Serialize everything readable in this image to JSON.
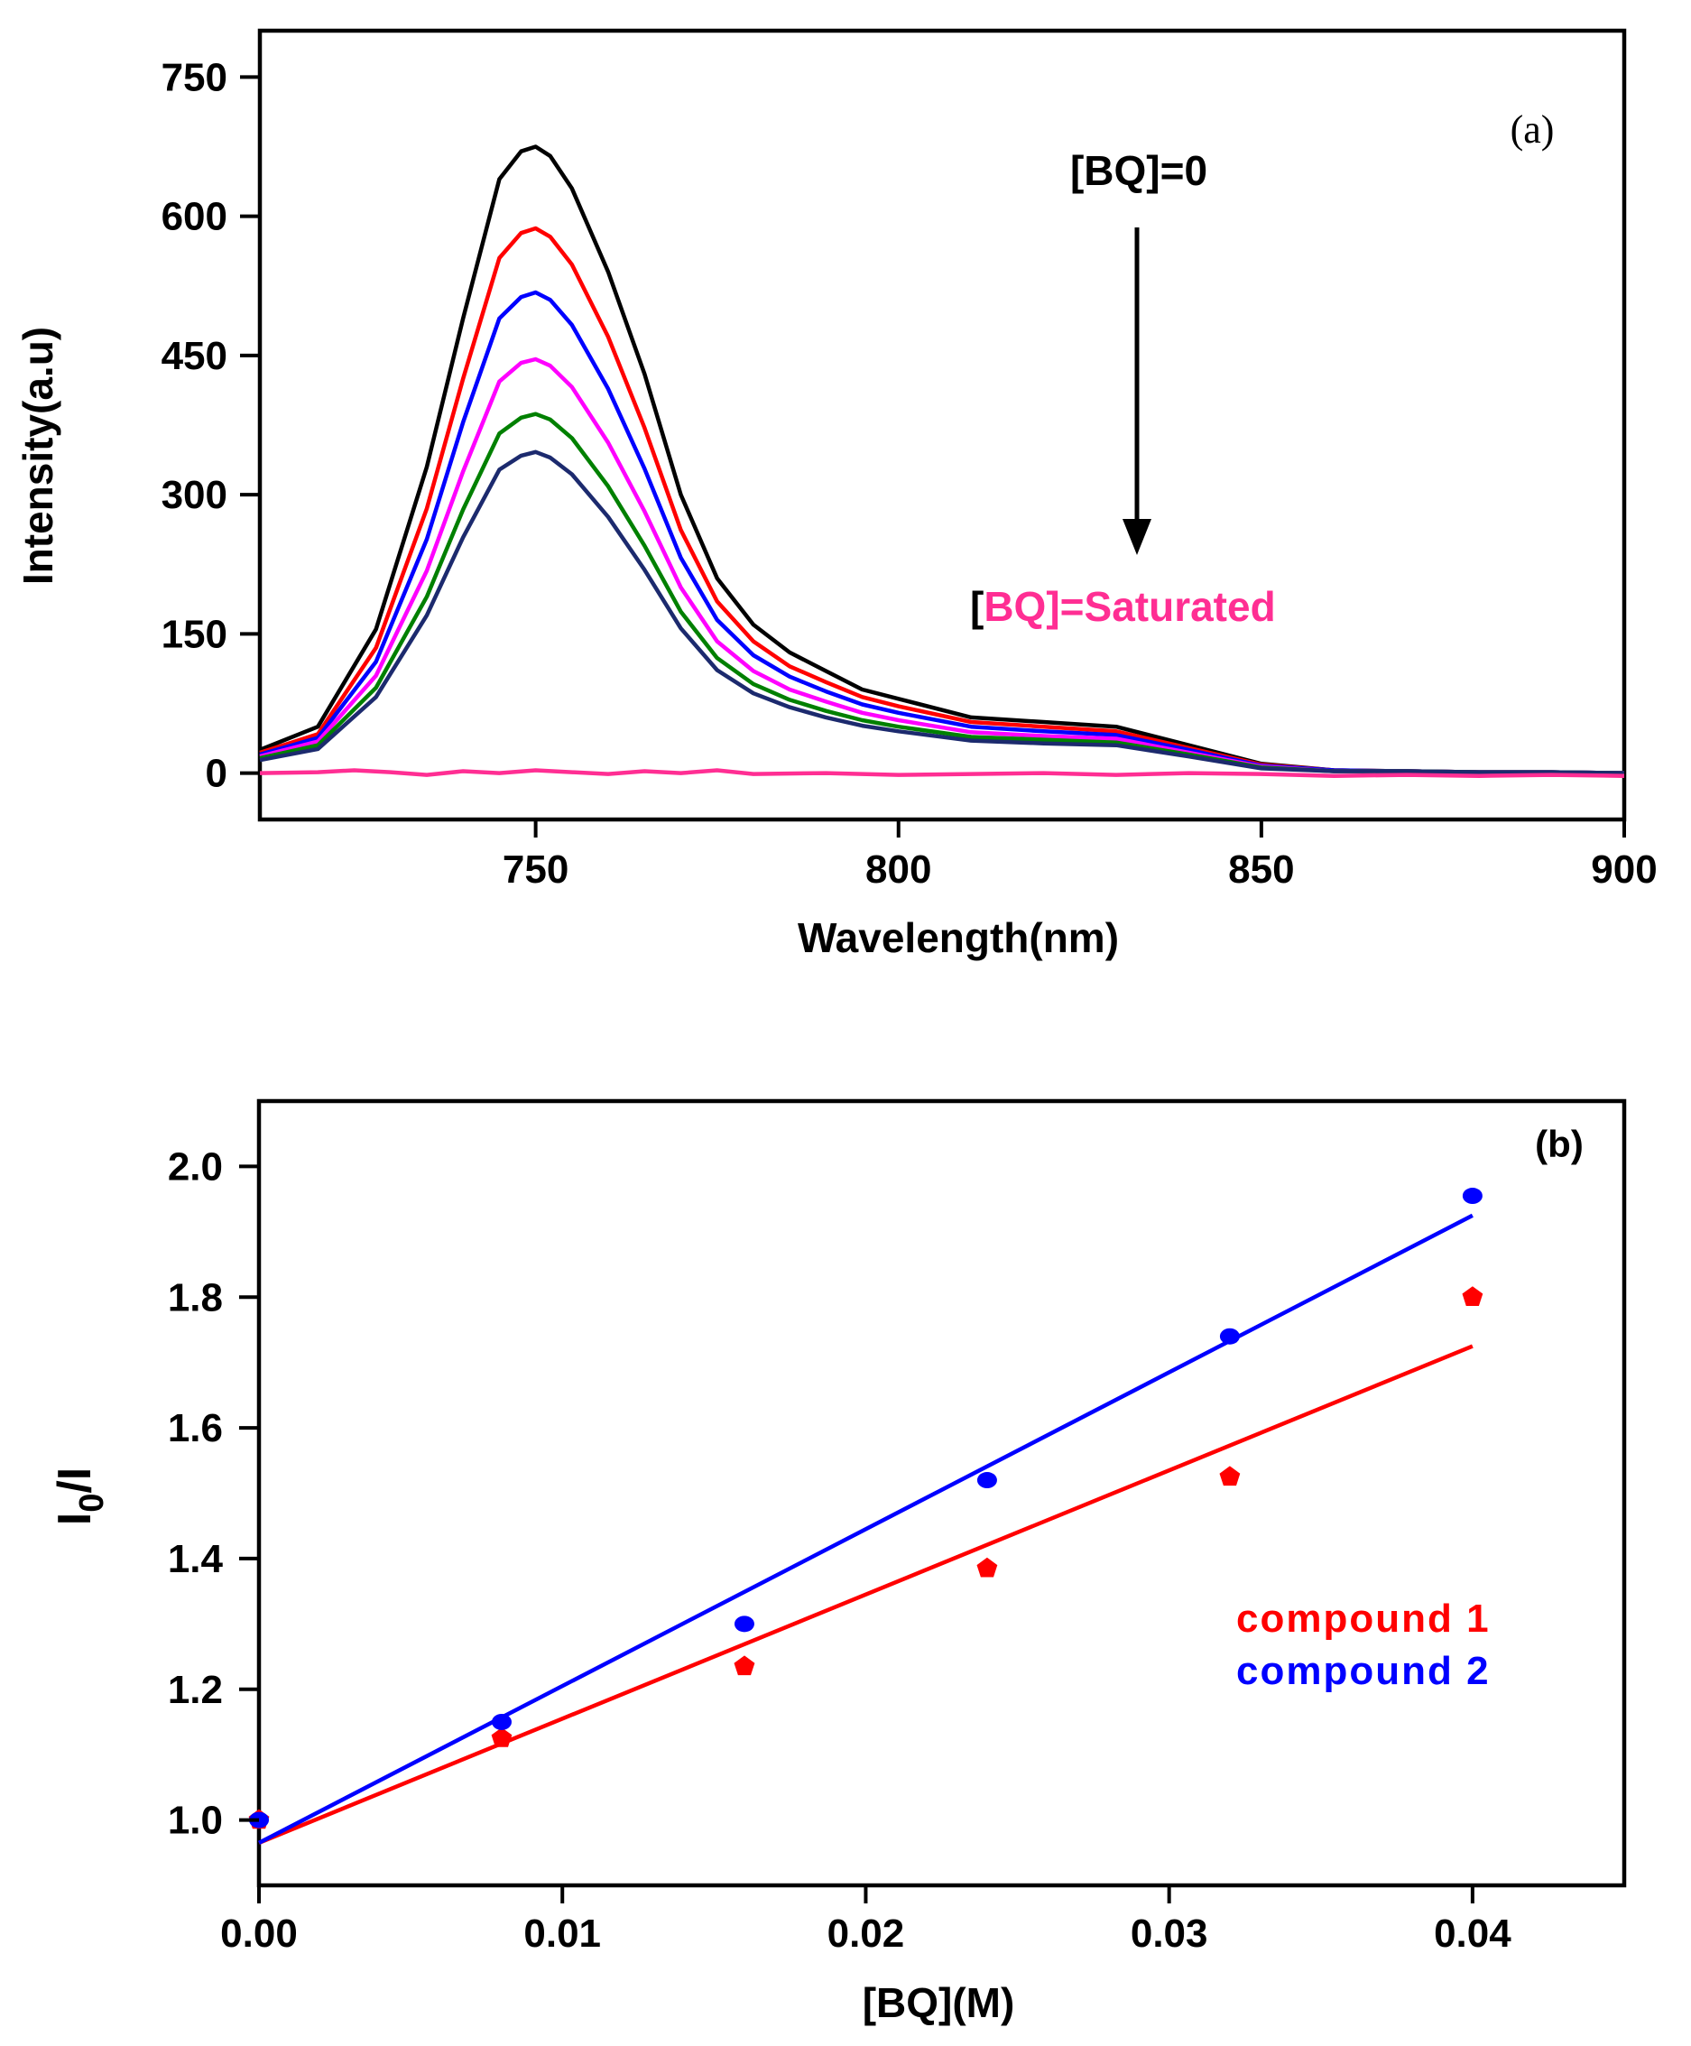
{
  "chart_data": [
    {
      "type": "line",
      "panel_label": "(a)",
      "xlabel": "Wavelength(nm)",
      "ylabel": "Intensity(a.u)",
      "xlim": [
        712,
        900
      ],
      "ylim": [
        -50,
        800
      ],
      "xticks": [
        750,
        800,
        850,
        900
      ],
      "yticks": [
        0,
        150,
        300,
        450,
        600,
        750
      ],
      "grid": false,
      "annotations": {
        "top": "[BQ]=0",
        "bottom_bracket_open": "[",
        "bottom_species": "BQ",
        "bottom_rest": "]=Saturated",
        "arrow": "down"
      },
      "series": [
        {
          "color": "#000000",
          "x": [
            712,
            720,
            728,
            735,
            740,
            745,
            748,
            750,
            752,
            755,
            760,
            765,
            770,
            775,
            780,
            785,
            790,
            795,
            800,
            810,
            820,
            830,
            840,
            850,
            860,
            870,
            880,
            890,
            900
          ],
          "y": [
            25,
            50,
            155,
            330,
            490,
            640,
            670,
            675,
            665,
            630,
            540,
            430,
            300,
            210,
            160,
            130,
            110,
            90,
            80,
            60,
            55,
            50,
            30,
            10,
            3,
            2,
            1,
            1,
            0
          ]
        },
        {
          "color": "#ff0000",
          "x": [
            712,
            720,
            728,
            735,
            740,
            745,
            748,
            750,
            752,
            755,
            760,
            765,
            770,
            775,
            780,
            785,
            790,
            795,
            800,
            810,
            820,
            830,
            840,
            850,
            860,
            870,
            880,
            890,
            900
          ],
          "y": [
            22,
            42,
            135,
            285,
            425,
            555,
            582,
            587,
            578,
            548,
            470,
            372,
            262,
            185,
            142,
            115,
            98,
            82,
            72,
            55,
            50,
            45,
            27,
            9,
            3,
            2,
            1,
            1,
            0
          ]
        },
        {
          "color": "#0000ff",
          "x": [
            712,
            720,
            728,
            735,
            740,
            745,
            748,
            750,
            752,
            755,
            760,
            765,
            770,
            775,
            780,
            785,
            790,
            795,
            800,
            810,
            820,
            830,
            840,
            850,
            860,
            870,
            880,
            890,
            900
          ],
          "y": [
            20,
            38,
            120,
            252,
            378,
            490,
            513,
            518,
            510,
            483,
            414,
            328,
            232,
            165,
            127,
            104,
            88,
            74,
            65,
            50,
            45,
            41,
            25,
            8,
            3,
            2,
            1,
            1,
            0
          ]
        },
        {
          "color": "#ff00ff",
          "x": [
            712,
            720,
            728,
            735,
            740,
            745,
            748,
            750,
            752,
            755,
            760,
            765,
            770,
            775,
            780,
            785,
            790,
            795,
            800,
            810,
            820,
            830,
            840,
            850,
            860,
            870,
            880,
            890,
            900
          ],
          "y": [
            18,
            34,
            105,
            218,
            325,
            422,
            442,
            446,
            439,
            416,
            356,
            282,
            200,
            142,
            110,
            90,
            77,
            65,
            57,
            44,
            40,
            37,
            22,
            7,
            2,
            2,
            1,
            1,
            0
          ]
        },
        {
          "color": "#008000",
          "x": [
            712,
            720,
            728,
            735,
            740,
            745,
            748,
            750,
            752,
            755,
            760,
            765,
            770,
            775,
            780,
            785,
            790,
            795,
            800,
            810,
            820,
            830,
            840,
            850,
            860,
            870,
            880,
            890,
            900
          ],
          "y": [
            16,
            30,
            92,
            190,
            284,
            366,
            383,
            387,
            381,
            361,
            309,
            245,
            174,
            124,
            96,
            79,
            67,
            57,
            50,
            39,
            36,
            33,
            20,
            6,
            2,
            2,
            1,
            1,
            0
          ]
        },
        {
          "color": "#1c2a6e",
          "x": [
            712,
            720,
            728,
            735,
            740,
            745,
            748,
            750,
            752,
            755,
            760,
            765,
            770,
            775,
            780,
            785,
            790,
            795,
            800,
            810,
            820,
            830,
            840,
            850,
            860,
            870,
            880,
            890,
            900
          ],
          "y": [
            14,
            26,
            82,
            170,
            254,
            327,
            342,
            346,
            340,
            322,
            276,
            219,
            156,
            111,
            86,
            71,
            60,
            51,
            45,
            35,
            32,
            30,
            18,
            5,
            2,
            2,
            1,
            1,
            0
          ]
        },
        {
          "color": "#ff2e93",
          "x": [
            712,
            720,
            725,
            730,
            735,
            740,
            745,
            750,
            755,
            760,
            765,
            770,
            775,
            780,
            790,
            800,
            810,
            820,
            830,
            840,
            850,
            860,
            870,
            880,
            890,
            900
          ],
          "y": [
            0,
            1,
            3,
            1,
            -2,
            2,
            0,
            3,
            1,
            -1,
            2,
            0,
            3,
            -1,
            0,
            -2,
            -1,
            0,
            -2,
            0,
            -1,
            -3,
            -2,
            -3,
            -2,
            -3
          ]
        }
      ]
    },
    {
      "type": "scatter",
      "panel_label": "(b)",
      "xlabel": "[BQ](M)",
      "ylabel_main": "I",
      "ylabel_sub": "0",
      "ylabel_tail": "/I",
      "xlim": [
        0,
        0.045
      ],
      "ylim": [
        0.9,
        2.1
      ],
      "xticks": [
        "0.00",
        "0.01",
        "0.02",
        "0.03",
        "0.04"
      ],
      "yticks": [
        "1.0",
        "1.2",
        "1.4",
        "1.6",
        "1.8",
        "2.0"
      ],
      "grid": false,
      "legend_position": "lower-right",
      "series": [
        {
          "name": "compound 1",
          "color": "#ff0000",
          "x": [
            0.0,
            0.008,
            0.016,
            0.024,
            0.032,
            0.04
          ],
          "y": [
            1.0,
            1.125,
            1.235,
            1.385,
            1.525,
            1.8
          ],
          "fit": {
            "x": [
              0.0,
              0.04
            ],
            "y": [
              0.965,
              1.725
            ]
          }
        },
        {
          "name": "compound 2",
          "color": "#0000ff",
          "x": [
            0.0,
            0.008,
            0.016,
            0.024,
            0.032,
            0.04
          ],
          "y": [
            1.0,
            1.15,
            1.3,
            1.52,
            1.74,
            1.955
          ],
          "fit": {
            "x": [
              0.0,
              0.04
            ],
            "y": [
              0.965,
              1.925
            ]
          }
        }
      ]
    }
  ]
}
